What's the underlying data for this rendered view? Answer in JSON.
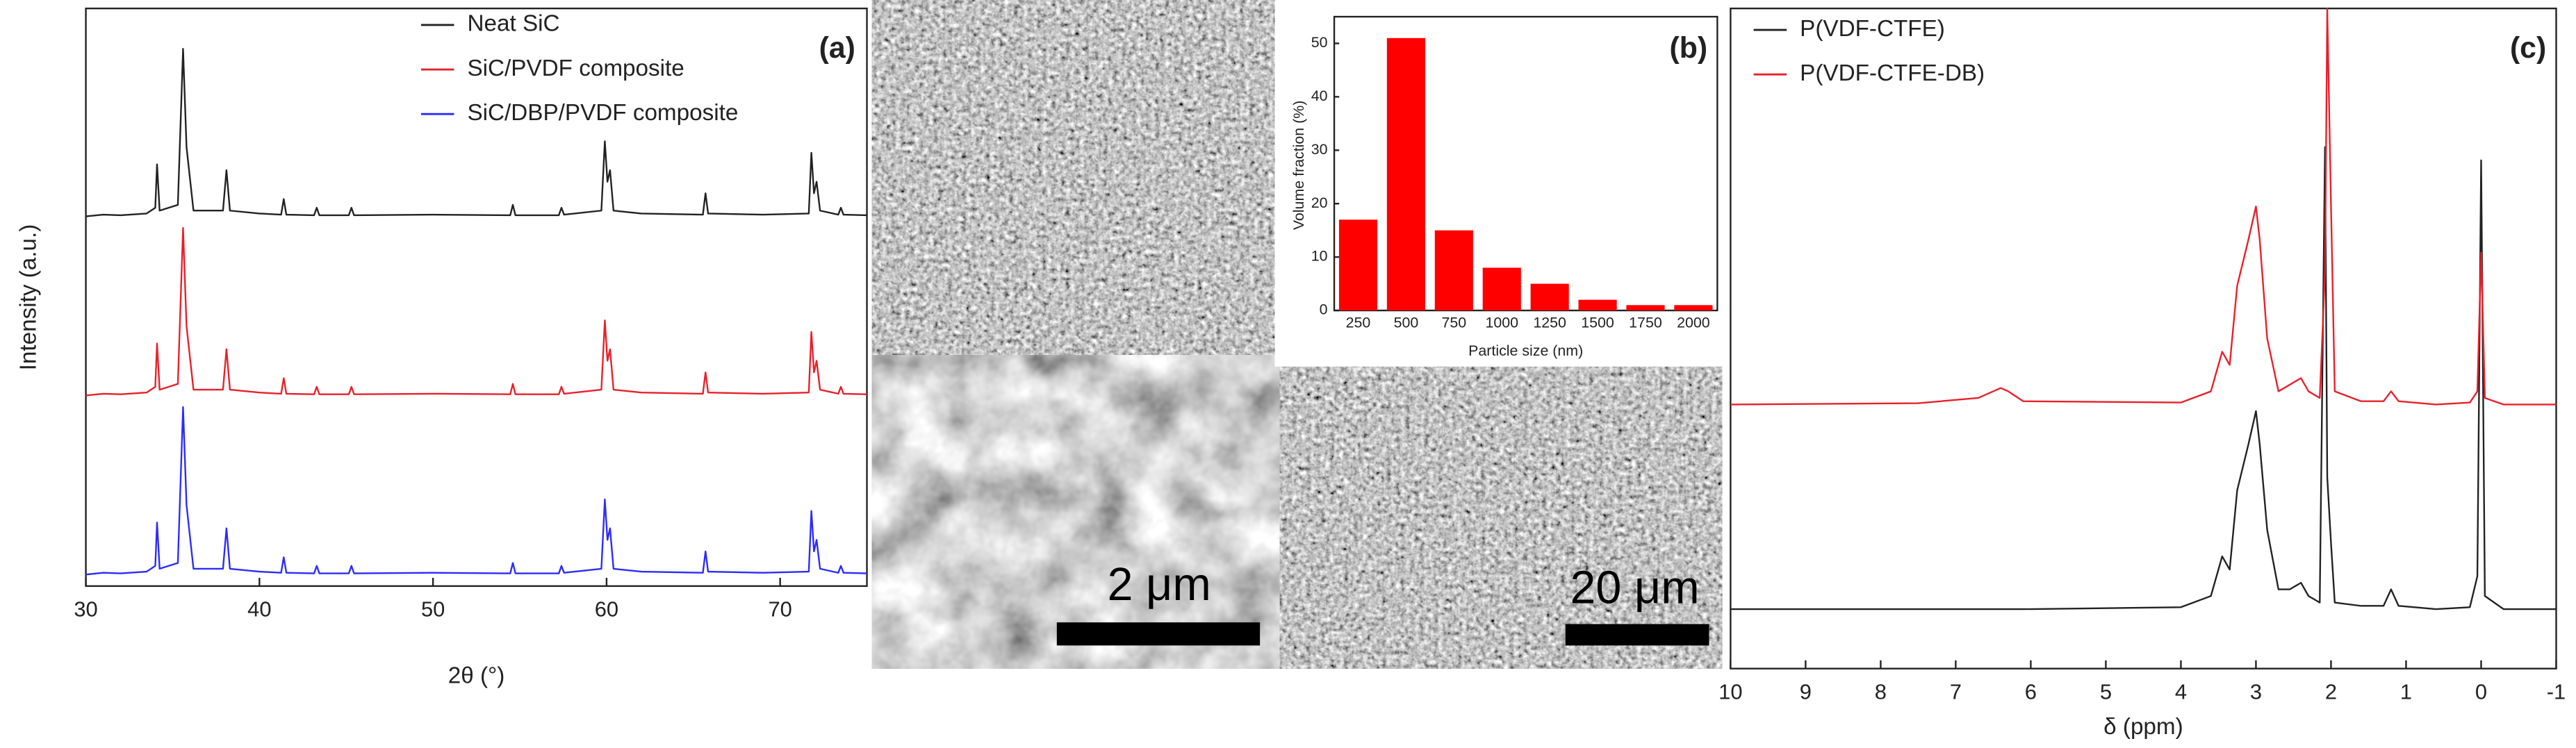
{
  "chart_data": [
    {
      "type": "line",
      "panel_label": "(a)",
      "x_label": "2θ (°)",
      "y_label": "Intensity (a.u.)",
      "x": [
        30,
        31,
        32,
        33.5,
        34.0,
        34.1,
        34.25,
        35.3,
        35.6,
        35.8,
        36.2,
        37.9,
        38.1,
        38.3,
        40,
        41.25,
        41.4,
        41.55,
        43.15,
        43.3,
        43.45,
        45.15,
        45.3,
        45.45,
        50,
        54.45,
        54.6,
        54.75,
        57.25,
        57.4,
        57.55,
        59.7,
        59.9,
        60.05,
        60.2,
        60.4,
        62,
        65.55,
        65.7,
        65.85,
        69,
        71.65,
        71.8,
        71.95,
        72.1,
        72.3,
        73.35,
        73.5,
        73.65,
        75
      ],
      "xlim": [
        30,
        75
      ],
      "xticks": [
        30,
        40,
        50,
        60,
        70
      ],
      "ylim": [
        0,
        100
      ],
      "series": [
        {
          "name": "Neat SiC",
          "color": "#222222",
          "values": [
            64,
            64.3,
            64.2,
            64.5,
            65.5,
            73,
            65,
            66,
            93,
            76,
            65,
            65,
            72,
            65,
            64.5,
            64.3,
            67,
            64.3,
            64.2,
            65.5,
            64.2,
            64.2,
            65.5,
            64.2,
            64.3,
            64.2,
            66,
            64.2,
            64.2,
            65.5,
            64.3,
            65,
            77,
            70,
            72,
            65,
            64.5,
            64.3,
            68,
            64.5,
            64.3,
            64.5,
            75,
            68,
            70,
            65,
            64.3,
            65.5,
            64.3,
            64.2
          ]
        },
        {
          "name": "SiC/PVDF composite",
          "color": "#e8202a",
          "values": [
            33,
            33.3,
            33.2,
            33.5,
            34.5,
            42,
            34,
            35,
            62,
            45,
            34,
            34,
            41,
            34,
            33.5,
            33.3,
            36,
            33.3,
            33.2,
            34.5,
            33.2,
            33.2,
            34.5,
            33.2,
            33.3,
            33.2,
            35,
            33.2,
            33.2,
            34.5,
            33.3,
            34,
            46,
            39,
            41,
            34,
            33.5,
            33.3,
            37,
            33.5,
            33.3,
            33.5,
            44,
            37,
            39,
            34,
            33.3,
            34.5,
            33.3,
            33.2
          ]
        },
        {
          "name": "SiC/DBP/PVDF composite",
          "color": "#2b2bff",
          "values": [
            2,
            2.3,
            2.2,
            2.5,
            3.5,
            11,
            3,
            4,
            31,
            14,
            3,
            3,
            10,
            3,
            2.5,
            2.3,
            5,
            2.3,
            2.2,
            3.5,
            2.2,
            2.2,
            3.5,
            2.2,
            2.3,
            2.2,
            4,
            2.2,
            2.2,
            3.5,
            2.3,
            3,
            15,
            8,
            10,
            3,
            2.5,
            2.3,
            6,
            2.5,
            2.3,
            2.5,
            13,
            6,
            8,
            3,
            2.3,
            3.5,
            2.3,
            2.2
          ]
        }
      ]
    },
    {
      "type": "bar",
      "panel_label": "(b)",
      "x_label": "Particle size (nm)",
      "y_label": "Volume fraction (%)",
      "categories": [
        "250",
        "500",
        "750",
        "1000",
        "1250",
        "1500",
        "1750",
        "2000"
      ],
      "values": [
        17,
        51,
        15,
        8,
        5,
        2,
        1,
        1
      ],
      "color": "#ff0000",
      "ylim": [
        0,
        55
      ],
      "yticks": [
        0,
        10,
        20,
        30,
        40,
        50
      ]
    },
    {
      "type": "line",
      "panel_label": "(c)",
      "x_label": "δ (ppm)",
      "x": [
        10,
        7.5,
        6.7,
        6.5,
        6.4,
        6.3,
        6.1,
        4,
        3.6,
        3.45,
        3.35,
        3.25,
        3.1,
        3.0,
        2.95,
        2.85,
        2.7,
        2.55,
        2.4,
        2.3,
        2.15,
        2.08,
        2.05,
        2.0,
        1.95,
        1.6,
        1.3,
        1.2,
        1.1,
        0.6,
        0.15,
        0.05,
        0.0,
        -0.05,
        -0.3,
        -1
      ],
      "xlim": [
        10,
        -1
      ],
      "xticks": [
        10,
        9,
        8,
        7,
        6,
        5,
        4,
        3,
        2,
        1,
        0,
        -1
      ],
      "ylim": [
        0,
        100
      ],
      "series": [
        {
          "name": "P(VDF-CTFE)",
          "color": "#222222",
          "values": [
            9,
            9,
            9,
            9,
            9,
            9,
            9,
            9.3,
            11,
            17,
            15,
            27,
            34,
            39,
            34,
            21,
            12,
            12,
            13,
            11,
            10,
            79,
            29,
            19,
            10,
            9.5,
            9.5,
            12,
            9.5,
            9,
            9.3,
            14,
            77,
            11,
            9,
            9
          ]
        },
        {
          "name": "P(VDF-CTFE-DB)",
          "color": "#e8202a",
          "values": [
            40,
            40.2,
            41,
            42,
            42.5,
            42,
            40.5,
            40.3,
            42,
            48,
            46,
            58,
            65,
            70,
            65,
            50,
            42,
            43,
            44,
            42,
            41,
            60,
            100,
            70,
            42,
            40.5,
            40.5,
            42,
            40.5,
            40,
            40.3,
            42,
            63,
            41,
            40,
            40
          ]
        }
      ]
    }
  ],
  "scale_bars": [
    "2 μm",
    "20 μm"
  ]
}
